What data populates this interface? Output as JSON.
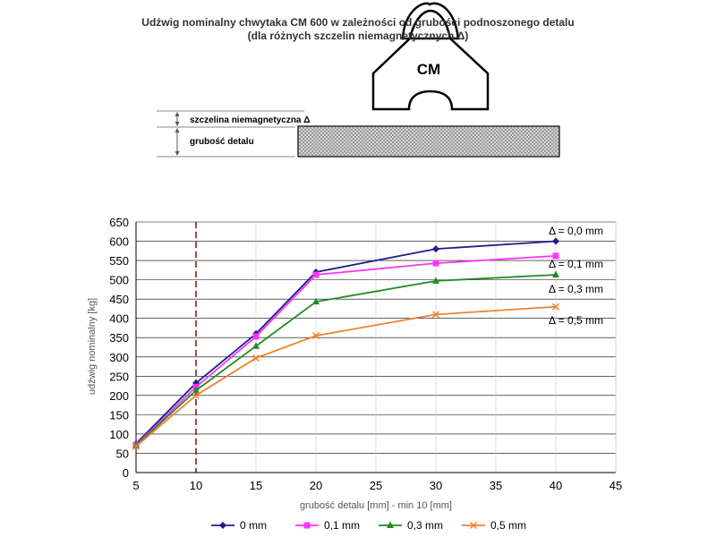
{
  "diagram": {
    "magnet_label": "CM",
    "gap_label": "szczelina niemagnetyczna Δ",
    "thickness_label": "grubość detalu"
  },
  "chart_data": {
    "type": "line",
    "title": "Udźwig nominalny chwytaka CM 600 w zależności od grubości podnoszonego detalu",
    "subtitle": "(dla różnych szczelin niemagnetycznych Δ)",
    "xlabel": "grubość detalu [mm] - min 10 [mm]",
    "ylabel": "udźwig nominalny [kg]",
    "xlim": [
      5,
      45
    ],
    "ylim": [
      0,
      650
    ],
    "x_ticks": [
      5,
      10,
      15,
      20,
      25,
      30,
      35,
      40,
      45
    ],
    "y_ticks": [
      0,
      50,
      100,
      150,
      200,
      250,
      300,
      350,
      400,
      450,
      500,
      550,
      600,
      650
    ],
    "grid": true,
    "reference_line_x": 10,
    "x": [
      5,
      10,
      15,
      20,
      30,
      40
    ],
    "series": [
      {
        "name": "0 mm",
        "annotation": "Δ = 0,0 mm",
        "color": "#1f1f8a",
        "marker": "diamond",
        "values": [
          75,
          232,
          360,
          520,
          580,
          600
        ]
      },
      {
        "name": "0,1 mm",
        "annotation": "Δ = 0,1 mm",
        "color": "#ff33ff",
        "marker": "square",
        "values": [
          72,
          222,
          353,
          513,
          543,
          562
        ]
      },
      {
        "name": "0,3 mm",
        "annotation": "Δ = 0,3 mm",
        "color": "#228b22",
        "marker": "triangle",
        "values": [
          70,
          213,
          328,
          443,
          497,
          513
        ]
      },
      {
        "name": "0,5 mm",
        "annotation": "Δ = 0,5 mm",
        "color": "#f28030",
        "marker": "x",
        "values": [
          68,
          200,
          297,
          355,
          410,
          430
        ]
      }
    ],
    "legend_position": "bottom"
  }
}
